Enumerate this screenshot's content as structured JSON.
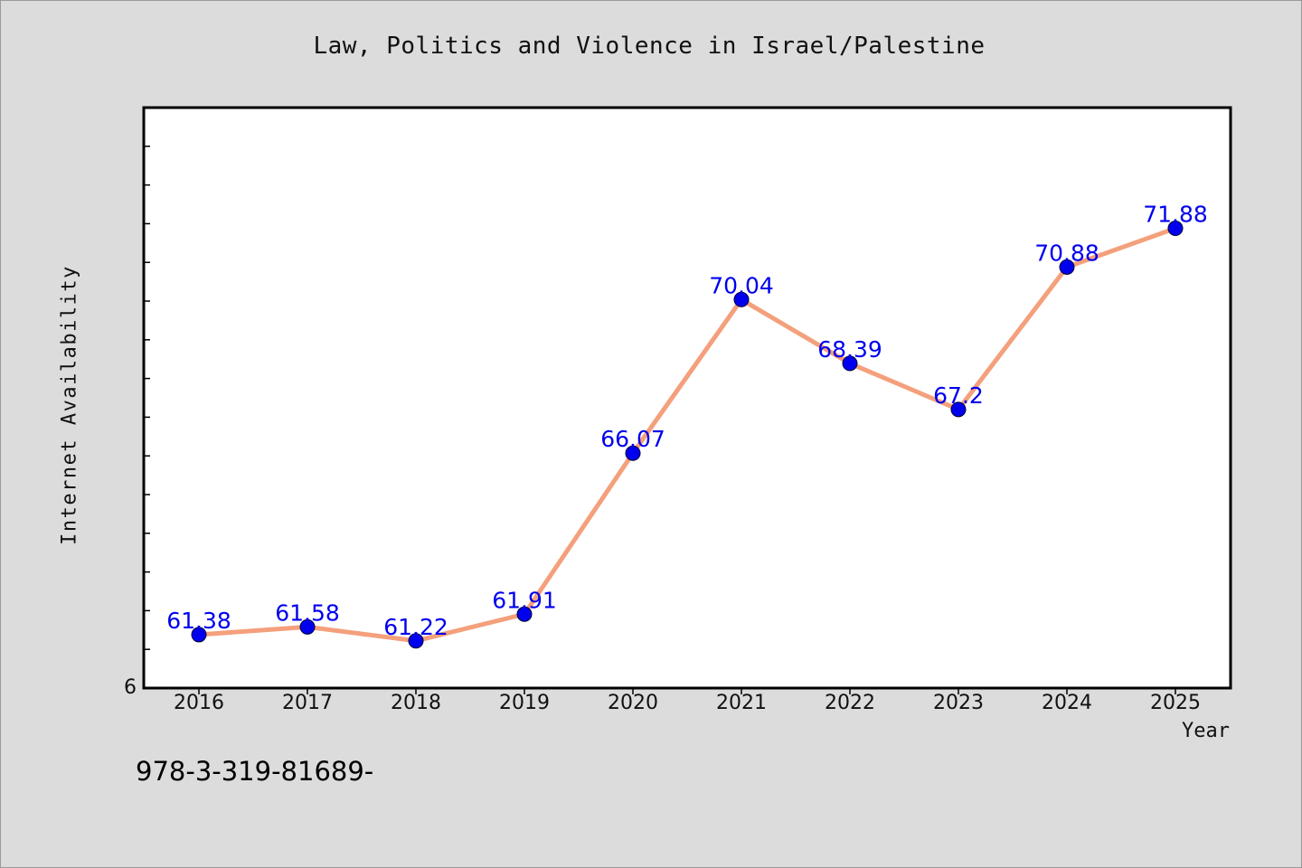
{
  "chart_data": {
    "type": "line",
    "title": "Law, Politics and Violence in Israel/Palestine",
    "xlabel": "Year",
    "ylabel": "Internet Availability",
    "x": [
      "2016",
      "2017",
      "2018",
      "2019",
      "2020",
      "2021",
      "2022",
      "2023",
      "2024",
      "2025"
    ],
    "series": [
      {
        "values": [
          61.38,
          61.58,
          61.22,
          61.91,
          66.07,
          70.04,
          68.39,
          67.2,
          70.88,
          71.88
        ],
        "data_labels": [
          "61.38",
          "61.58",
          "61.22",
          "61.91",
          "66.07",
          "70.04",
          "68.39",
          "67.2",
          "70.88",
          "71.88"
        ],
        "line_color": "#f4a07c",
        "marker_color": "#0000ee"
      }
    ],
    "ylim": [
      60.0,
      75.0
    ],
    "y_tick_labels": [
      "6"
    ],
    "grid": false,
    "legend": "none"
  },
  "footnote": "978-3-319-81689-"
}
